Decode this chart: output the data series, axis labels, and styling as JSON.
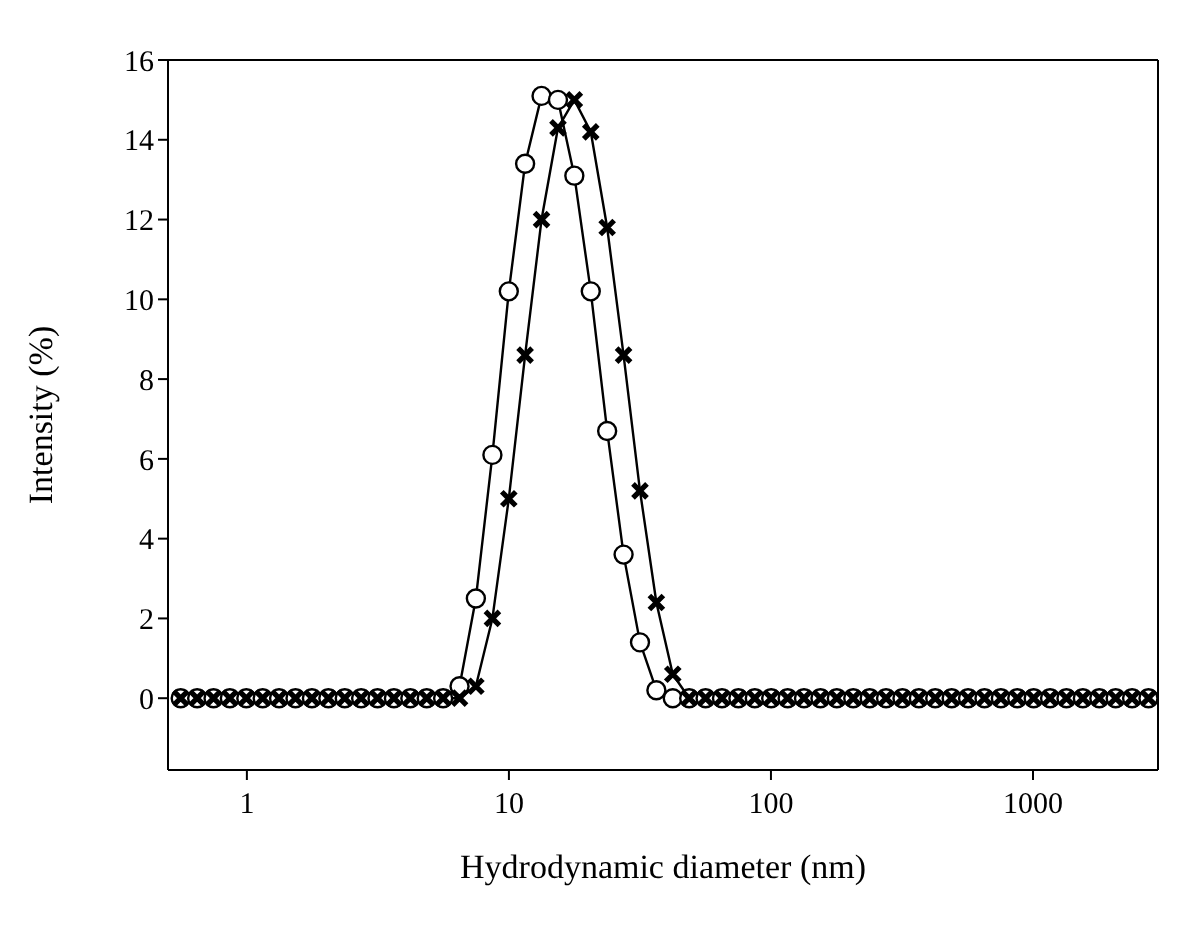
{
  "chart_data": {
    "type": "line",
    "xlabel": "Hydrodynamic diameter (nm)",
    "ylabel": "Intensity (%)",
    "x": [
      0.559,
      0.646,
      0.746,
      0.861,
      0.995,
      1.149,
      1.327,
      1.533,
      1.771,
      2.046,
      2.363,
      2.729,
      3.152,
      3.64,
      4.205,
      4.857,
      5.61,
      6.48,
      7.48,
      8.65,
      9.99,
      11.53,
      13.32,
      15.39,
      17.77,
      20.53,
      23.71,
      27.39,
      31.64,
      36.54,
      42.2,
      48.75,
      56.3,
      65.03,
      75.11,
      86.76,
      100.2,
      115.8,
      133.7,
      154.5,
      178.4,
      206.1,
      238.1,
      275,
      317.6,
      366.8,
      423.6,
      489.4,
      565.2,
      652.9,
      754.1,
      871,
      1006,
      1162,
      1342,
      1550,
      1791,
      2068,
      2389,
      2759
    ],
    "series": [
      {
        "color": "#000000",
        "marker": "circle",
        "values": [
          0,
          0,
          0,
          0,
          0,
          0,
          0,
          0,
          0,
          0,
          0,
          0,
          0,
          0,
          0,
          0,
          0,
          0.3,
          2.5,
          6.1,
          10.2,
          13.4,
          15.1,
          15.0,
          13.1,
          10.2,
          6.7,
          3.6,
          1.4,
          0.2,
          0,
          0,
          0,
          0,
          0,
          0,
          0,
          0,
          0,
          0,
          0,
          0,
          0,
          0,
          0,
          0,
          0,
          0,
          0,
          0,
          0,
          0,
          0,
          0,
          0,
          0,
          0,
          0,
          0,
          0
        ]
      },
      {
        "color": "#000000",
        "marker": "cross",
        "values": [
          0,
          0,
          0,
          0,
          0,
          0,
          0,
          0,
          0,
          0,
          0,
          0,
          0,
          0,
          0,
          0,
          0,
          0,
          0.3,
          2.0,
          5.0,
          8.6,
          12.0,
          14.3,
          15.0,
          14.2,
          11.8,
          8.6,
          5.2,
          2.4,
          0.6,
          0,
          0,
          0,
          0,
          0,
          0,
          0,
          0,
          0,
          0,
          0,
          0,
          0,
          0,
          0,
          0,
          0,
          0,
          0,
          0,
          0,
          0,
          0,
          0,
          0,
          0,
          0,
          0,
          0
        ]
      }
    ],
    "log": "x",
    "xlim": [
      0.5,
      3000
    ],
    "xticks": [
      1,
      10,
      100,
      1000
    ],
    "ylim": [
      -1.8,
      16
    ],
    "yticks": [
      0,
      2,
      4,
      6,
      8,
      10,
      12,
      14,
      16
    ],
    "line_style": "solid"
  }
}
